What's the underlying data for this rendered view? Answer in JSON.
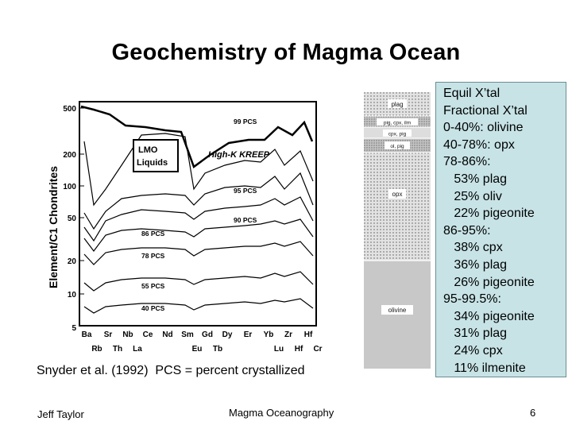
{
  "slide": {
    "title": "Geochemistry of Magma Ocean",
    "caption": "Snyder et al. (1992)  PCS = percent crystallized"
  },
  "figure": {
    "ylabel": "Element/C1 Chondrites",
    "y_ticks": [
      "500",
      "200",
      "100",
      "50",
      "20",
      "10",
      "5"
    ],
    "x_top": [
      "Ba",
      "Sr",
      "Nb",
      "Ce",
      "Nd",
      "Sm",
      "Gd",
      "Dy",
      "Er",
      "Yb",
      "Zr",
      "Hf"
    ],
    "x_bottom": [
      "Rb",
      "Th",
      "La",
      "Eu",
      "Tb",
      "Lu",
      "Hf",
      "Cr"
    ],
    "legend_box": [
      "LMO",
      "Liquids"
    ],
    "kreep_label": "High-K KREEP",
    "curve_labels": [
      "99 PCS",
      "95 PCS",
      "90 PCS",
      "86 PCS",
      "78 PCS",
      "55 PCS",
      "40 PCS"
    ]
  },
  "column": {
    "layers": [
      "plag",
      "pig, cpx, ilm",
      "cpx, pig",
      "ol, pig",
      "opx",
      "olivine"
    ]
  },
  "callout": {
    "lines": [
      "Equil X’tal",
      "Fractional X’tal",
      "0-40%: olivine",
      "40-78%: opx",
      "78-86%:",
      "   53% plag",
      "   25% oliv",
      "   22% pigeonite",
      "86-95%:",
      "   38% cpx",
      "   36% plag",
      "   26% pigeonite",
      "95-99.5%:",
      "   34% pigeonite",
      "   31% plag",
      "   24% cpx",
      "   11% ilmenite"
    ]
  },
  "footer": {
    "author": "Jeff Taylor",
    "course": "Magma Oceanography",
    "page": "6"
  }
}
